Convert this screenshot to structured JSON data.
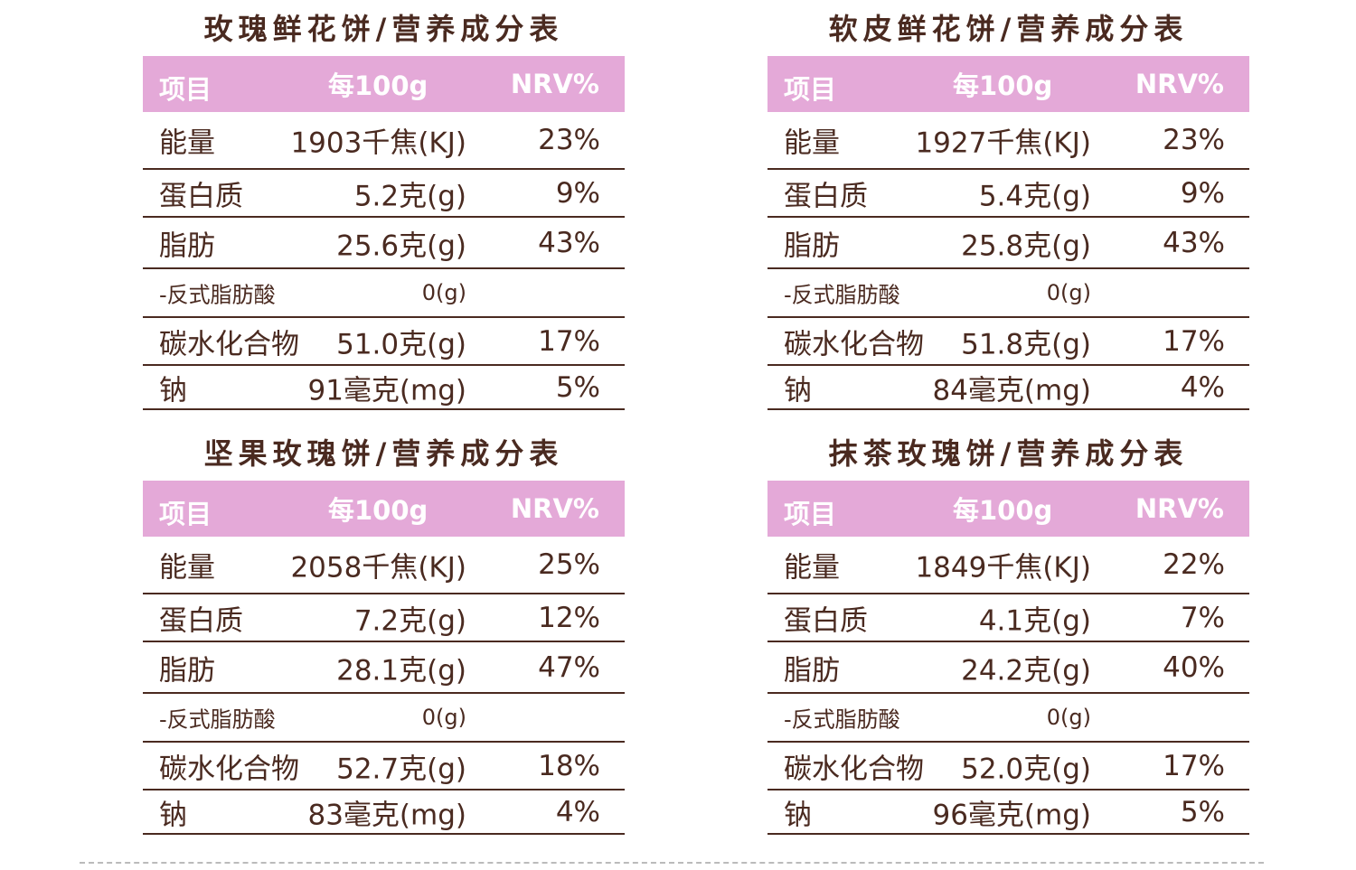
{
  "header": {
    "item": "项目",
    "per100g": "每100g",
    "nrv": "NRV%"
  },
  "panels": [
    {
      "title": "玫瑰鲜花饼/营养成分表",
      "rows": [
        {
          "label": "能量",
          "value": "1903千焦(KJ)",
          "nrv": "23%"
        },
        {
          "label": "蛋白质",
          "value": "5.2克(g)",
          "nrv": "9%"
        },
        {
          "label": "脂肪",
          "value": "25.6克(g)",
          "nrv": "43%"
        },
        {
          "label": "-反式脂肪酸",
          "value": "0(g)",
          "nrv": ""
        },
        {
          "label": "碳水化合物",
          "value": "51.0克(g)",
          "nrv": "17%"
        },
        {
          "label": "钠",
          "value": "91毫克(mg)",
          "nrv": "5%"
        }
      ]
    },
    {
      "title": "软皮鲜花饼/营养成分表",
      "rows": [
        {
          "label": "能量",
          "value": "1927千焦(KJ)",
          "nrv": "23%"
        },
        {
          "label": "蛋白质",
          "value": "5.4克(g)",
          "nrv": "9%"
        },
        {
          "label": "脂肪",
          "value": "25.8克(g)",
          "nrv": "43%"
        },
        {
          "label": "-反式脂肪酸",
          "value": "0(g)",
          "nrv": ""
        },
        {
          "label": "碳水化合物",
          "value": "51.8克(g)",
          "nrv": "17%"
        },
        {
          "label": "钠",
          "value": "84毫克(mg)",
          "nrv": "4%"
        }
      ]
    },
    {
      "title": "坚果玫瑰饼/营养成分表",
      "rows": [
        {
          "label": "能量",
          "value": "2058千焦(KJ)",
          "nrv": "25%"
        },
        {
          "label": "蛋白质",
          "value": "7.2克(g)",
          "nrv": "12%"
        },
        {
          "label": "脂肪",
          "value": "28.1克(g)",
          "nrv": "47%"
        },
        {
          "label": "-反式脂肪酸",
          "value": "0(g)",
          "nrv": ""
        },
        {
          "label": "碳水化合物",
          "value": "52.7克(g)",
          "nrv": "18%"
        },
        {
          "label": "钠",
          "value": "83毫克(mg)",
          "nrv": "4%"
        }
      ]
    },
    {
      "title": "抹茶玫瑰饼/营养成分表",
      "rows": [
        {
          "label": "能量",
          "value": "1849千焦(KJ)",
          "nrv": "22%"
        },
        {
          "label": "蛋白质",
          "value": "4.1克(g)",
          "nrv": "7%"
        },
        {
          "label": "脂肪",
          "value": "24.2克(g)",
          "nrv": "40%"
        },
        {
          "label": "-反式脂肪酸",
          "value": "0(g)",
          "nrv": ""
        },
        {
          "label": "碳水化合物",
          "value": "52.0克(g)",
          "nrv": "17%"
        },
        {
          "label": "钠",
          "value": "96毫克(mg)",
          "nrv": "5%"
        }
      ]
    }
  ]
}
